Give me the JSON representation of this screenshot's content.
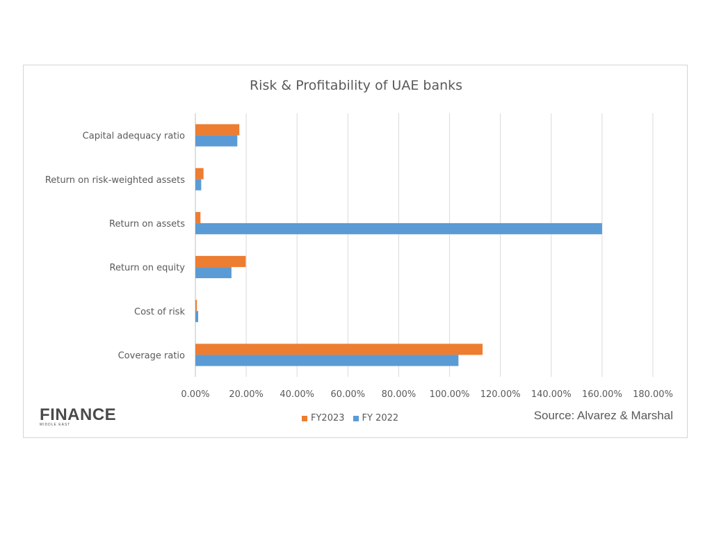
{
  "chart_data": {
    "type": "bar",
    "orientation": "horizontal",
    "title": "Risk & Profitability of UAE banks",
    "categories": [
      "Capital adequacy ratio",
      "Return on risk-weighted assets",
      "Return on assets",
      "Return on equity",
      "Cost of risk",
      "Coverage ratio"
    ],
    "series": [
      {
        "name": "FY2023",
        "color": "#ed7d31",
        "values": [
          17.3,
          3.2,
          2.0,
          19.8,
          0.6,
          113.0
        ]
      },
      {
        "name": "FY 2022",
        "color": "#5b9bd5",
        "values": [
          16.5,
          2.3,
          160.0,
          14.2,
          1.1,
          103.5
        ]
      }
    ],
    "xlim": [
      0,
      180
    ],
    "xticks": [
      "0.00%",
      "20.00%",
      "40.00%",
      "60.00%",
      "80.00%",
      "100.00%",
      "120.00%",
      "140.00%",
      "160.00%",
      "180.00%"
    ],
    "grid": true,
    "legend_position": "bottom"
  },
  "source": "Source: Alvarez & Marshal",
  "logo": {
    "main": "FINANCE",
    "sub": "MIDDLE EAST"
  }
}
